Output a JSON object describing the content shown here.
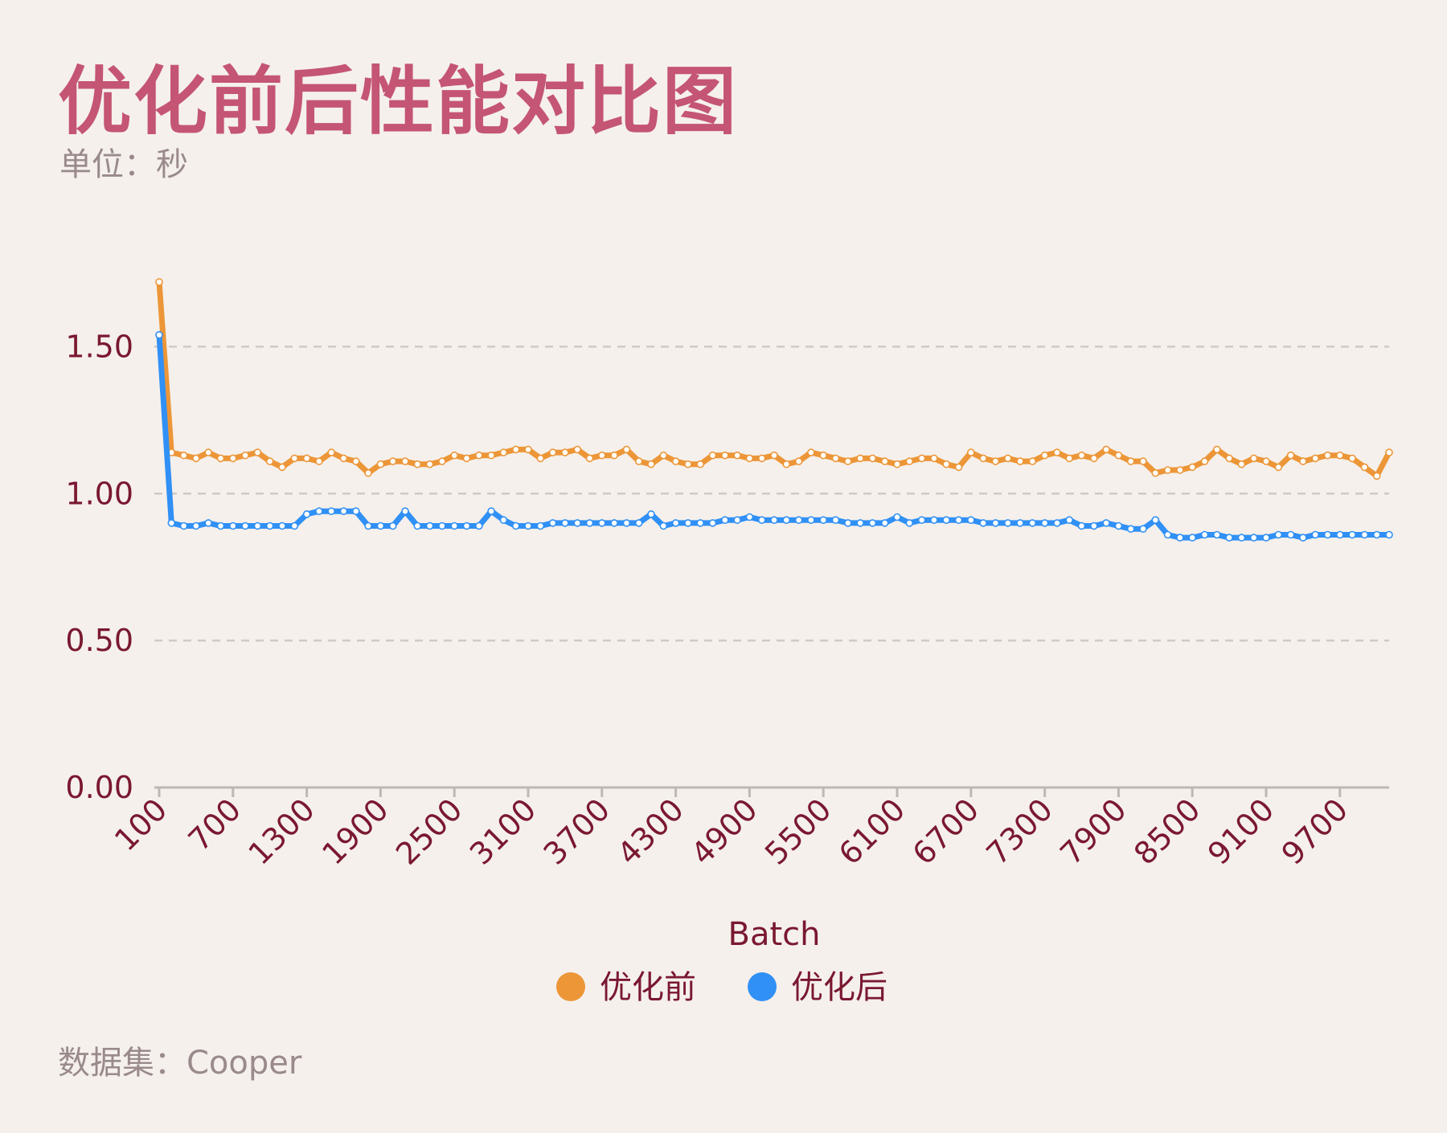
{
  "header": {
    "title": "优化前后性能对比图",
    "subtitle": "单位：秒"
  },
  "footer": {
    "source": "数据集：Cooper"
  },
  "chart_data": {
    "type": "line",
    "title": "优化前后性能对比图",
    "xlabel": "Batch",
    "ylabel": "",
    "ylim": [
      0,
      1.75
    ],
    "xlim": [
      100,
      10100
    ],
    "x_tick_values": [
      100,
      700,
      1300,
      1900,
      2500,
      3100,
      3700,
      4300,
      4900,
      5500,
      6100,
      6700,
      7300,
      7900,
      8500,
      9100,
      9700
    ],
    "x_tick_labels": [
      "100",
      "700",
      "1300",
      "1900",
      "2500",
      "3100",
      "3700",
      "4300",
      "4900",
      "5500",
      "6100",
      "6700",
      "7300",
      "7900",
      "8500",
      "9100",
      "9700"
    ],
    "y_tick_values": [
      0,
      0.5,
      1.0,
      1.5
    ],
    "y_tick_labels": [
      "0.00",
      "0.50",
      "1.00",
      "1.50"
    ],
    "grid": "horizontal dashed",
    "legend_position": "bottom-center",
    "x": [
      100,
      200,
      300,
      400,
      500,
      600,
      700,
      800,
      900,
      1000,
      1100,
      1200,
      1300,
      1400,
      1500,
      1600,
      1700,
      1800,
      1900,
      2000,
      2100,
      2200,
      2300,
      2400,
      2500,
      2600,
      2700,
      2800,
      2900,
      3000,
      3100,
      3200,
      3300,
      3400,
      3500,
      3600,
      3700,
      3800,
      3900,
      4000,
      4100,
      4200,
      4300,
      4400,
      4500,
      4600,
      4700,
      4800,
      4900,
      5000,
      5100,
      5200,
      5300,
      5400,
      5500,
      5600,
      5700,
      5800,
      5900,
      6000,
      6100,
      6200,
      6300,
      6400,
      6500,
      6600,
      6700,
      6800,
      6900,
      7000,
      7100,
      7200,
      7300,
      7400,
      7500,
      7600,
      7700,
      7800,
      7900,
      8000,
      8100,
      8200,
      8300,
      8400,
      8500,
      8600,
      8700,
      8800,
      8900,
      9000,
      9100,
      9200,
      9300,
      9400,
      9500,
      9600,
      9700,
      9800,
      9900,
      10000,
      10100
    ],
    "series": [
      {
        "name": "优化前",
        "color": "#ec9638",
        "values": [
          1.72,
          1.14,
          1.13,
          1.12,
          1.14,
          1.12,
          1.12,
          1.13,
          1.14,
          1.11,
          1.09,
          1.12,
          1.12,
          1.11,
          1.14,
          1.12,
          1.11,
          1.07,
          1.1,
          1.11,
          1.11,
          1.1,
          1.1,
          1.11,
          1.13,
          1.12,
          1.13,
          1.13,
          1.14,
          1.15,
          1.15,
          1.12,
          1.14,
          1.14,
          1.15,
          1.12,
          1.13,
          1.13,
          1.15,
          1.11,
          1.1,
          1.13,
          1.11,
          1.1,
          1.1,
          1.13,
          1.13,
          1.13,
          1.12,
          1.12,
          1.13,
          1.1,
          1.11,
          1.14,
          1.13,
          1.12,
          1.11,
          1.12,
          1.12,
          1.11,
          1.1,
          1.11,
          1.12,
          1.12,
          1.1,
          1.09,
          1.14,
          1.12,
          1.11,
          1.12,
          1.11,
          1.11,
          1.13,
          1.14,
          1.12,
          1.13,
          1.12,
          1.15,
          1.13,
          1.11,
          1.11,
          1.07,
          1.08,
          1.08,
          1.09,
          1.11,
          1.15,
          1.12,
          1.1,
          1.12,
          1.11,
          1.09,
          1.13,
          1.11,
          1.12,
          1.13,
          1.13,
          1.12,
          1.09,
          1.06,
          1.14
        ]
      },
      {
        "name": "优化后",
        "color": "#3090f5",
        "values": [
          1.54,
          0.9,
          0.89,
          0.89,
          0.9,
          0.89,
          0.89,
          0.89,
          0.89,
          0.89,
          0.89,
          0.89,
          0.93,
          0.94,
          0.94,
          0.94,
          0.94,
          0.89,
          0.89,
          0.89,
          0.94,
          0.89,
          0.89,
          0.89,
          0.89,
          0.89,
          0.89,
          0.94,
          0.91,
          0.89,
          0.89,
          0.89,
          0.9,
          0.9,
          0.9,
          0.9,
          0.9,
          0.9,
          0.9,
          0.9,
          0.93,
          0.89,
          0.9,
          0.9,
          0.9,
          0.9,
          0.91,
          0.91,
          0.92,
          0.91,
          0.91,
          0.91,
          0.91,
          0.91,
          0.91,
          0.91,
          0.9,
          0.9,
          0.9,
          0.9,
          0.92,
          0.9,
          0.91,
          0.91,
          0.91,
          0.91,
          0.91,
          0.9,
          0.9,
          0.9,
          0.9,
          0.9,
          0.9,
          0.9,
          0.91,
          0.89,
          0.89,
          0.9,
          0.89,
          0.88,
          0.88,
          0.91,
          0.86,
          0.85,
          0.85,
          0.86,
          0.86,
          0.85,
          0.85,
          0.85,
          0.85,
          0.86,
          0.86,
          0.85,
          0.86,
          0.86,
          0.86,
          0.86,
          0.86,
          0.86,
          0.86
        ]
      }
    ]
  }
}
